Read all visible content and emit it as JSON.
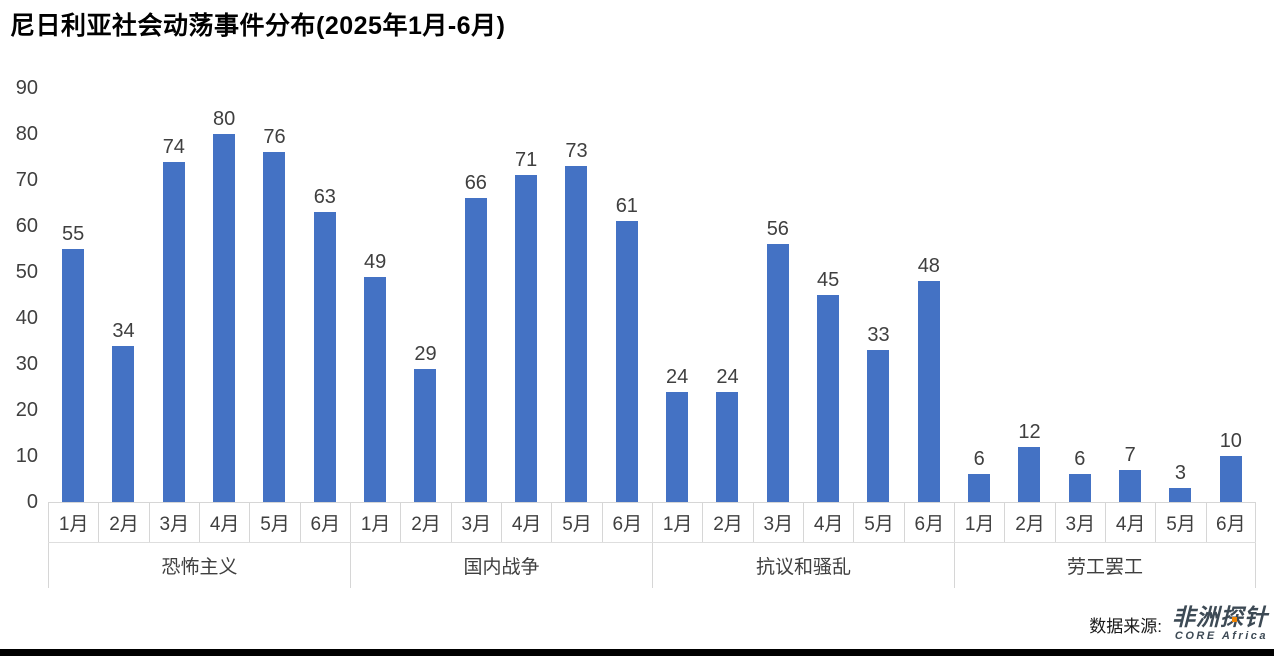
{
  "chart_data": {
    "type": "bar",
    "title": "尼日利亚社会动荡事件分布(2025年1月-6月)",
    "xlabel": "",
    "ylabel": "",
    "ylim": [
      0,
      90
    ],
    "yticks": [
      0,
      10,
      20,
      30,
      40,
      50,
      60,
      70,
      80,
      90
    ],
    "grid": false,
    "legend": "none",
    "bar_color": "#4472C4",
    "month_labels": [
      "1月",
      "2月",
      "3月",
      "4月",
      "5月",
      "6月"
    ],
    "groups": [
      {
        "name": "恐怖主义",
        "values": [
          55,
          34,
          74,
          80,
          76,
          63
        ]
      },
      {
        "name": "国内战争",
        "values": [
          49,
          29,
          66,
          71,
          73,
          61
        ]
      },
      {
        "name": "抗议和骚乱",
        "values": [
          24,
          24,
          56,
          45,
          33,
          48
        ]
      },
      {
        "name": "劳工罢工",
        "values": [
          6,
          12,
          6,
          7,
          3,
          10
        ]
      }
    ]
  },
  "footer": {
    "source_label": "数据来源:",
    "logo_cn": "非洲探针",
    "logo_en": "CORE Africa",
    "logo_color": "#3d4a55",
    "logo_accent": "#f08300"
  }
}
